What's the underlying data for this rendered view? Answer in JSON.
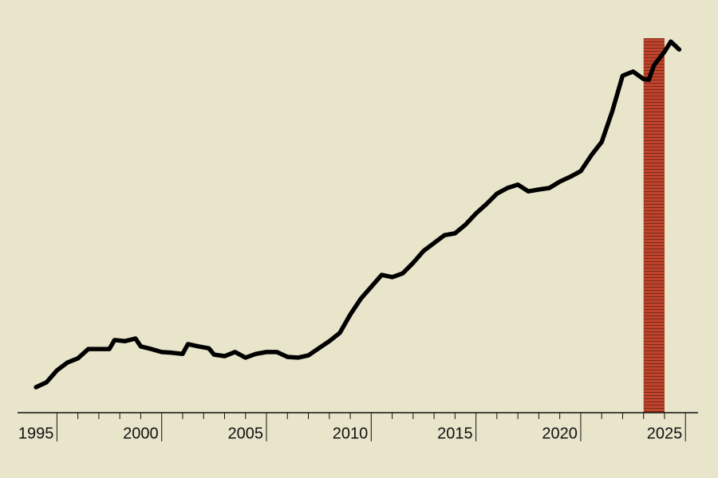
{
  "chart_data": {
    "type": "line",
    "x": [
      1995.0,
      1995.5,
      1996.0,
      1996.5,
      1997.0,
      1997.5,
      1998.0,
      1998.5,
      1998.75,
      1999.25,
      1999.75,
      2000.0,
      2000.5,
      2001.0,
      2001.5,
      2002.0,
      2002.25,
      2002.75,
      2003.25,
      2003.5,
      2004.0,
      2004.5,
      2005.0,
      2005.5,
      2006.0,
      2006.5,
      2007.0,
      2007.5,
      2008.0,
      2008.5,
      2009.0,
      2009.5,
      2010.0,
      2010.5,
      2011.0,
      2011.5,
      2012.0,
      2012.5,
      2013.0,
      2013.5,
      2014.0,
      2014.5,
      2015.0,
      2015.5,
      2016.0,
      2016.5,
      2017.0,
      2017.5,
      2018.0,
      2018.5,
      2019.0,
      2019.5,
      2020.0,
      2020.5,
      2021.0,
      2021.5,
      2022.0,
      2022.5,
      2023.0,
      2023.5,
      2024.0,
      2024.25,
      2024.5,
      2025.0,
      2025.3,
      2025.7
    ],
    "series": [
      {
        "color": "#000000",
        "values": [
          6.8,
          8.1,
          11.3,
          13.4,
          14.5,
          17.0,
          17.0,
          17.0,
          19.4,
          19.1,
          19.8,
          17.7,
          17.0,
          16.2,
          16.0,
          15.7,
          18.3,
          17.7,
          17.2,
          15.5,
          15.1,
          16.2,
          14.7,
          15.7,
          16.2,
          16.2,
          14.9,
          14.7,
          15.3,
          17.2,
          19.1,
          21.3,
          26.2,
          30.4,
          33.6,
          36.8,
          36.2,
          37.2,
          40.0,
          43.2,
          45.3,
          47.4,
          47.9,
          50.2,
          53.2,
          55.7,
          58.5,
          60.0,
          60.9,
          59.1,
          59.6,
          60.0,
          61.7,
          63.0,
          64.5,
          68.7,
          72.3,
          80.4,
          90.0,
          91.1,
          89.1,
          88.9,
          92.8,
          96.4,
          99.1,
          97.0
        ]
      }
    ],
    "xlim": [
      1994.12,
      2026.6
    ],
    "ylim": [
      0,
      100
    ],
    "xticks": [
      1995,
      2000,
      2005,
      2010,
      2015,
      2020,
      2025
    ],
    "xminor_ticks": [
      1996,
      1997,
      1998,
      1999,
      2000,
      2001,
      2002,
      2003,
      2004,
      2005,
      2006,
      2007,
      2008,
      2009,
      2010,
      2011,
      2012,
      2013,
      2014,
      2015,
      2016,
      2017,
      2018,
      2019,
      2020,
      2021,
      2022,
      2023,
      2024,
      2025,
      2026
    ],
    "highlight": [
      2024,
      2025
    ],
    "highlight_color": "#c0442c"
  }
}
